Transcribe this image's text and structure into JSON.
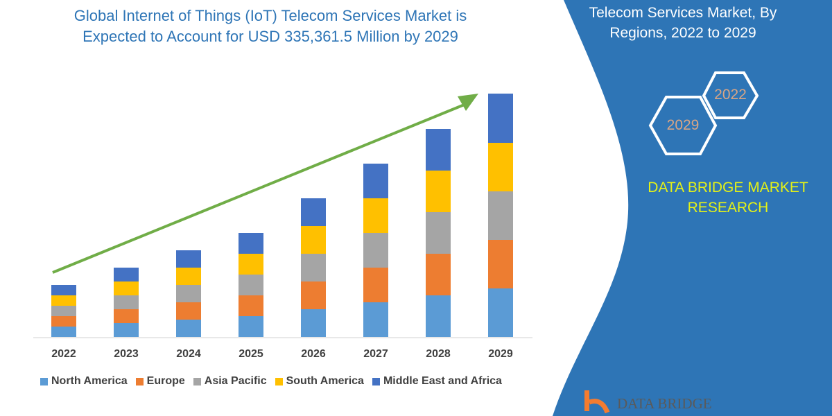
{
  "title": "Global Internet of Things (IoT) Telecom Services Market is Expected to Account for USD 335,361.5 Million by 2029",
  "title_line1": "Global Internet of Things (IoT) Telecom Services Market is",
  "title_line2": "Expected to Account for USD 335,361.5 Million by 2029",
  "side_panel": {
    "title_line1": "Telecom Services Market, By",
    "title_line2": "Regions, 2022 to 2029",
    "hex_start": "2022",
    "hex_end": "2029",
    "brand_line1": "DATA BRIDGE MARKET",
    "brand_line2": "RESEARCH",
    "logo_text": "DATA BRIDGE",
    "panel_color": "#2e75b6"
  },
  "chart_data": {
    "type": "bar",
    "stacked": true,
    "title": "",
    "xlabel": "",
    "ylabel": "",
    "grid": false,
    "legend_position": "bottom",
    "trend_arrow_color": "#70ad47",
    "categories": [
      "2022",
      "2023",
      "2024",
      "2025",
      "2026",
      "2027",
      "2028",
      "2029"
    ],
    "series": [
      {
        "name": "North America",
        "color": "#5b9bd5",
        "values": [
          15,
          20,
          25,
          30,
          40,
          50,
          60,
          70
        ]
      },
      {
        "name": "Europe",
        "color": "#ed7d31",
        "values": [
          15,
          20,
          25,
          30,
          40,
          50,
          60,
          70
        ]
      },
      {
        "name": "Asia Pacific",
        "color": "#a5a5a5",
        "values": [
          15,
          20,
          25,
          30,
          40,
          50,
          60,
          70
        ]
      },
      {
        "name": "South America",
        "color": "#ffc000",
        "values": [
          15,
          20,
          25,
          30,
          40,
          50,
          60,
          70
        ]
      },
      {
        "name": "Middle East and Africa",
        "color": "#4472c4",
        "values": [
          15,
          20,
          25,
          30,
          40,
          50,
          60,
          71
        ]
      }
    ]
  }
}
